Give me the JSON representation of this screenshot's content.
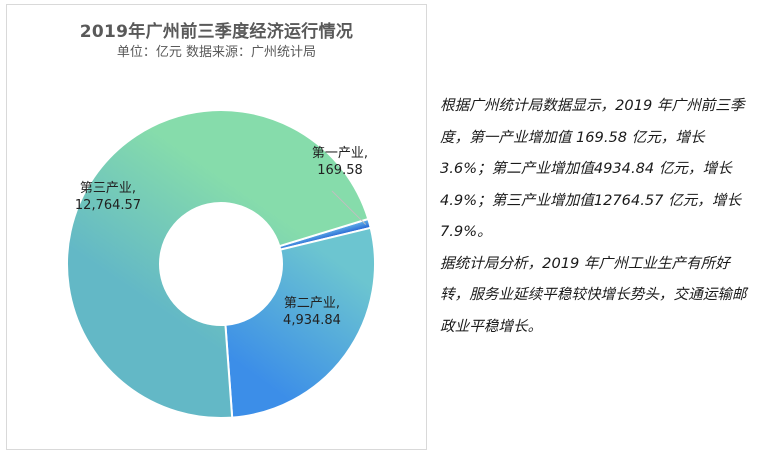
{
  "chart_data": {
    "type": "pie",
    "title": "2019年广州前三季度经济运行情况",
    "subtitle": "单位：亿元  数据来源：广州统计局",
    "series": [
      {
        "categories": [
          "第一产业",
          "第二产业",
          "第三产业"
        ],
        "values": [
          169.58,
          4934.84,
          12764.57
        ],
        "value_labels": [
          "169.58",
          "4,934.84",
          "12,764.57"
        ],
        "colors": [
          {
            "from": "#2e6fd6",
            "to": "#5aa6e6"
          },
          {
            "from": "#3c8ee8",
            "to": "#6cc5d0"
          },
          {
            "from": "#86dcab",
            "to": "#63b8c6"
          }
        ]
      }
    ],
    "donut": true,
    "legend": "none"
  },
  "commentary": {
    "paragraph_1": "根据广州统计局数据显示，2019 年广州前三季度，第一产业增加值 169.58 亿元，增长 3.6%；第二产业增加值4934.84 亿元，增长 4.9%；第三产业增加值12764.57 亿元，增长 7.9%。",
    "paragraph_2": "据统计局分析，2019 年广州工业生产有所好转，服务业延续平稳较快增长势头，交通运输邮政业平稳增长。"
  }
}
